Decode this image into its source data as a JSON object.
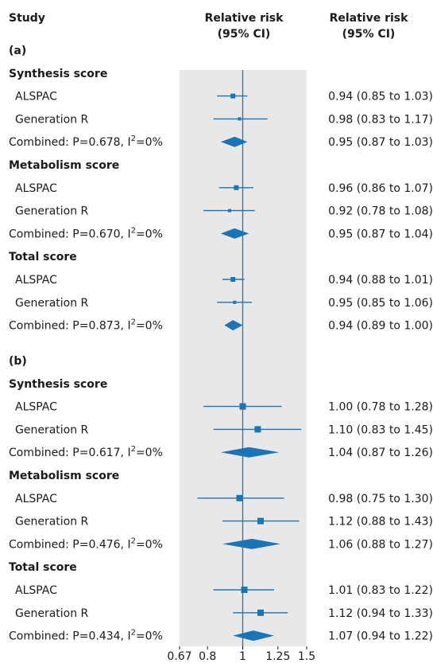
{
  "chart_data": {
    "type": "forest",
    "scale": "log",
    "xlim": [
      0.67,
      1.5
    ],
    "reference_line": 1,
    "x_ticks": [
      {
        "value": 0.67,
        "label": "0.67"
      },
      {
        "value": 0.8,
        "label": "0.8"
      },
      {
        "value": 1,
        "label": "1"
      },
      {
        "value": 1.25,
        "label": "1.25"
      },
      {
        "value": 1.5,
        "label": "1.5"
      }
    ],
    "columns": {
      "study": "Study",
      "rr_line1": "Relative risk",
      "rr_line2": "(95% CI)"
    },
    "panels": [
      {
        "label": "(a)",
        "groups": [
          {
            "name": "Synthesis score",
            "rows": [
              {
                "study": "ALSPAC",
                "rr": 0.94,
                "lo": 0.85,
                "hi": 1.03,
                "text": "0.94 (0.85 to 1.03)"
              },
              {
                "study": "Generation R",
                "rr": 0.98,
                "lo": 0.83,
                "hi": 1.17,
                "text": "0.98 (0.83 to 1.17)"
              }
            ],
            "combined": {
              "label": "Combined: P=0.678, I",
              "sup": "2",
              "tail": "=0%",
              "rr": 0.95,
              "lo": 0.87,
              "hi": 1.03,
              "text": "0.95 (0.87 to 1.03)"
            }
          },
          {
            "name": "Metabolism score",
            "rows": [
              {
                "study": "ALSPAC",
                "rr": 0.96,
                "lo": 0.86,
                "hi": 1.07,
                "text": "0.96 (0.86 to 1.07)"
              },
              {
                "study": "Generation R",
                "rr": 0.92,
                "lo": 0.78,
                "hi": 1.08,
                "text": "0.92 (0.78 to 1.08)"
              }
            ],
            "combined": {
              "label": "Combined: P=0.670, I",
              "sup": "2",
              "tail": "=0%",
              "rr": 0.95,
              "lo": 0.87,
              "hi": 1.04,
              "text": "0.95 (0.87 to 1.04)"
            }
          },
          {
            "name": "Total score",
            "rows": [
              {
                "study": "ALSPAC",
                "rr": 0.94,
                "lo": 0.88,
                "hi": 1.01,
                "text": "0.94 (0.88 to 1.01)"
              },
              {
                "study": "Generation R",
                "rr": 0.95,
                "lo": 0.85,
                "hi": 1.06,
                "text": "0.95 (0.85 to 1.06)"
              }
            ],
            "combined": {
              "label": "Combined: P=0.873, I",
              "sup": "2",
              "tail": "=0%",
              "rr": 0.94,
              "lo": 0.89,
              "hi": 1.0,
              "text": "0.94 (0.89 to 1.00)"
            }
          }
        ]
      },
      {
        "label": "(b)",
        "groups": [
          {
            "name": "Synthesis score",
            "rows": [
              {
                "study": "ALSPAC",
                "rr": 1.0,
                "lo": 0.78,
                "hi": 1.28,
                "text": "1.00 (0.78 to 1.28)"
              },
              {
                "study": "Generation R",
                "rr": 1.1,
                "lo": 0.83,
                "hi": 1.45,
                "text": "1.10 (0.83 to 1.45)"
              }
            ],
            "combined": {
              "label": "Combined: P=0.617, I",
              "sup": "2",
              "tail": "=0%",
              "rr": 1.04,
              "lo": 0.87,
              "hi": 1.26,
              "text": "1.04 (0.87 to 1.26)"
            }
          },
          {
            "name": "Metabolism score",
            "rows": [
              {
                "study": "ALSPAC",
                "rr": 0.98,
                "lo": 0.75,
                "hi": 1.3,
                "text": "0.98 (0.75 to 1.30)"
              },
              {
                "study": "Generation R",
                "rr": 1.12,
                "lo": 0.88,
                "hi": 1.43,
                "text": "1.12 (0.88 to 1.43)"
              }
            ],
            "combined": {
              "label": "Combined: P=0.476, I",
              "sup": "2",
              "tail": "=0%",
              "rr": 1.06,
              "lo": 0.88,
              "hi": 1.27,
              "text": "1.06 (0.88 to 1.27)"
            }
          },
          {
            "name": "Total score",
            "rows": [
              {
                "study": "ALSPAC",
                "rr": 1.01,
                "lo": 0.83,
                "hi": 1.22,
                "text": "1.01 (0.83 to 1.22)"
              },
              {
                "study": "Generation R",
                "rr": 1.12,
                "lo": 0.94,
                "hi": 1.33,
                "text": "1.12 (0.94 to 1.33)"
              }
            ],
            "combined": {
              "label": "Combined: P=0.434, I",
              "sup": "2",
              "tail": "=0%",
              "rr": 1.07,
              "lo": 0.94,
              "hi": 1.22,
              "text": "1.07 (0.94 to 1.22)"
            }
          }
        ]
      }
    ],
    "colors": {
      "marker": "#1a74b8",
      "panel_bg": "#e8e8e8",
      "text": "#1a1a1a"
    }
  }
}
